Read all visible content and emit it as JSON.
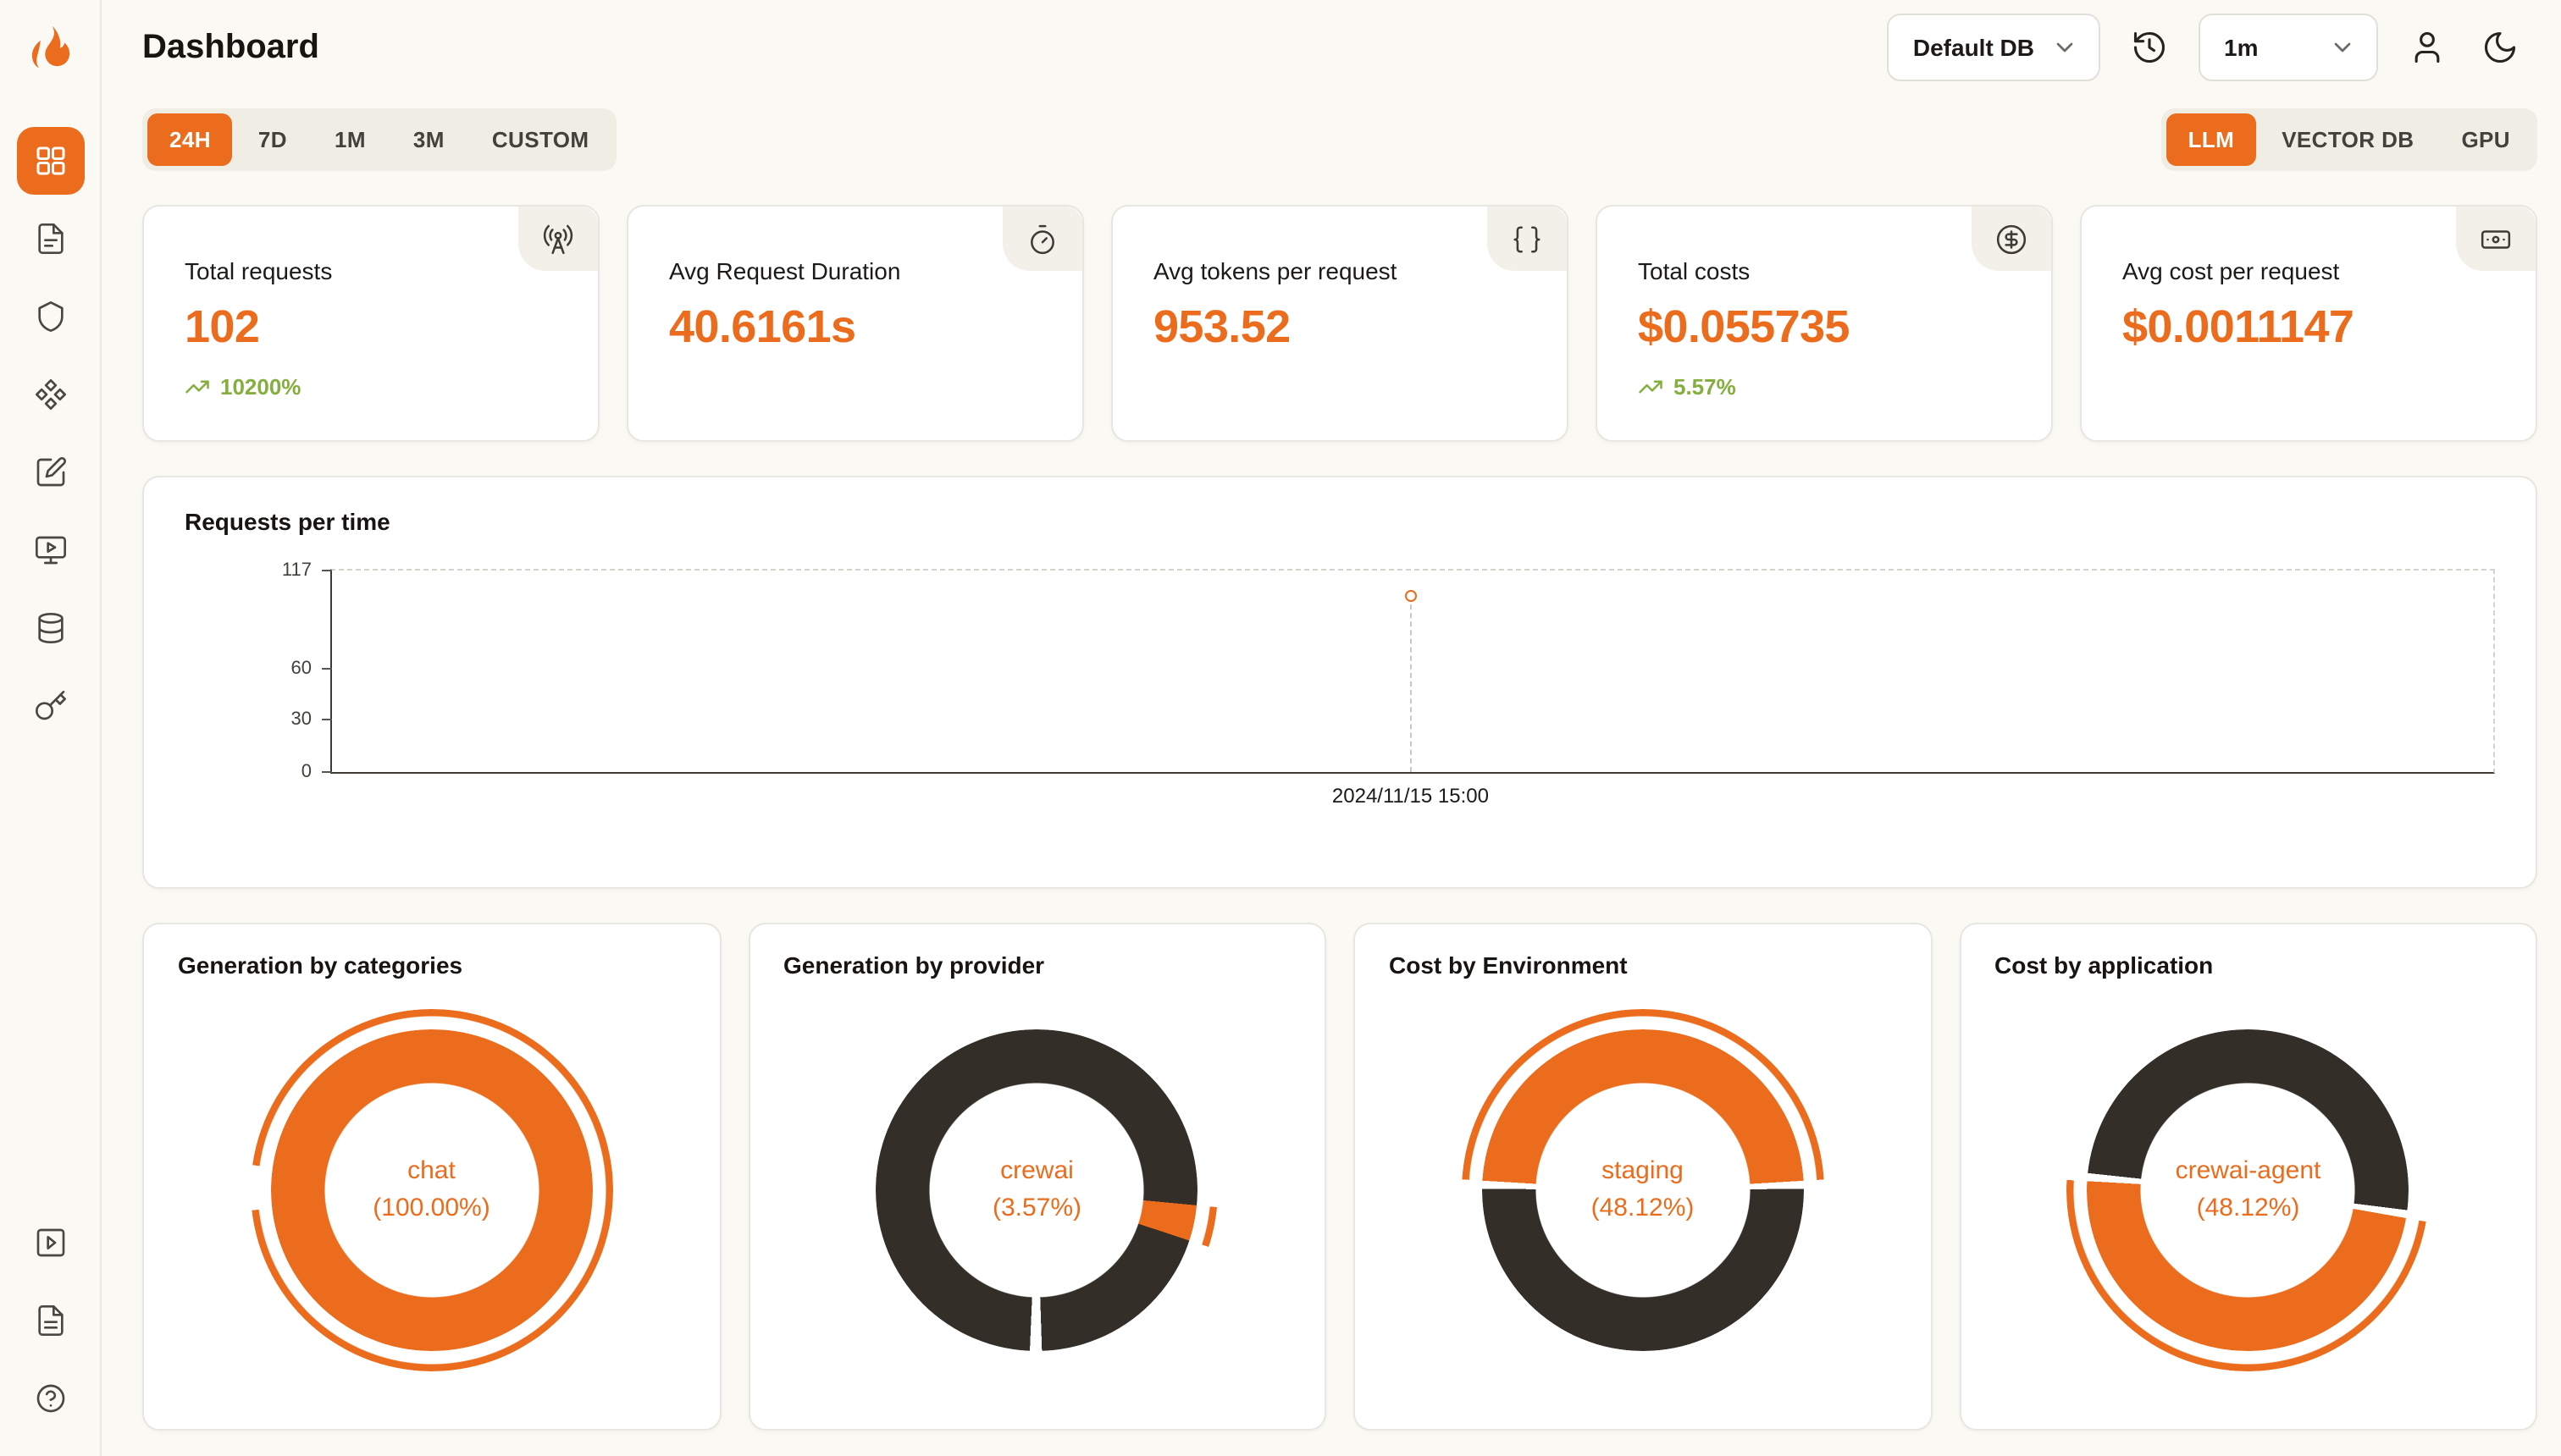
{
  "colors": {
    "accent": "#EA6C1C",
    "dark": "#332E28",
    "green": "#84AE3D",
    "page_bg": "#FAF9F4"
  },
  "header": {
    "title": "Dashboard",
    "db_select": {
      "value": "Default DB"
    },
    "refresh_interval_select": {
      "value": "1m"
    },
    "icons": [
      "history-icon",
      "user-icon",
      "moon-icon"
    ]
  },
  "sidebar": {
    "logo_icon": "flame-logo",
    "items": [
      {
        "icon": "dashboard-grid-icon",
        "active": true
      },
      {
        "icon": "requests-file-icon",
        "active": false
      },
      {
        "icon": "exceptions-shield-icon",
        "active": false
      },
      {
        "icon": "modules-diamonds-icon",
        "active": false
      },
      {
        "icon": "evaluations-edit-icon",
        "active": false
      },
      {
        "icon": "playground-monitor-icon",
        "active": false
      },
      {
        "icon": "databases-icon",
        "active": false
      },
      {
        "icon": "api-keys-key-icon",
        "active": false
      }
    ],
    "bottom_items": [
      {
        "icon": "getting-started-play-icon"
      },
      {
        "icon": "documentation-file-icon"
      },
      {
        "icon": "help-circle-icon"
      }
    ]
  },
  "filters": {
    "time_ranges": [
      "24H",
      "7D",
      "1M",
      "3M",
      "CUSTOM"
    ],
    "active_time_range": "24H",
    "modes": [
      "LLM",
      "VECTOR DB",
      "GPU"
    ],
    "active_mode": "LLM"
  },
  "stats": [
    {
      "label": "Total requests",
      "value": "102",
      "delta": "10200%",
      "icon": "radio-tower-icon"
    },
    {
      "label": "Avg Request Duration",
      "value": "40.6161s",
      "icon": "timer-icon"
    },
    {
      "label": "Avg tokens per request",
      "value": "953.52",
      "icon": "braces-icon"
    },
    {
      "label": "Total costs",
      "value": "$0.055735",
      "delta": "5.57%",
      "icon": "circle-dollar-icon"
    },
    {
      "label": "Avg cost per request",
      "value": "$0.0011147",
      "icon": "banknote-icon"
    }
  ],
  "chart_data": [
    {
      "type": "line",
      "title": "Requests per time",
      "x": [
        "2024/11/15 15:00"
      ],
      "values": [
        102
      ],
      "ylim": [
        0,
        117
      ],
      "yticks": [
        0,
        30,
        60,
        117
      ],
      "x_frac": 0.499,
      "grid": "dashed top/right frame, dashed vertical guide at data point",
      "legend": "none"
    },
    {
      "type": "pie",
      "title": "Generation by categories",
      "labels": [
        "chat"
      ],
      "values": [
        100.0
      ],
      "center_top": "chat",
      "center_bottom": "(100.00%)",
      "rotate": -90,
      "segments": [
        {
          "color": "#EA6C1C",
          "pct": 100
        }
      ],
      "arc": {
        "pct": 96,
        "rotate": -82,
        "color": "#EA6C1C"
      }
    },
    {
      "type": "pie",
      "title": "Generation by provider",
      "labels": [
        "crewai",
        "other"
      ],
      "values": [
        3.57,
        96.43
      ],
      "center_top": "crewai",
      "center_bottom": "(3.57%)",
      "rotate": 0,
      "segments": [
        {
          "color": "#332E28",
          "pct": 26.5
        },
        {
          "color": "#EA6C1C",
          "pct": 3.57
        },
        {
          "color": "#332E28",
          "pct": 19.4
        },
        {
          "color": "#FFFFFF",
          "pct": 1.2
        },
        {
          "color": "#332E28",
          "pct": 49.33
        }
      ],
      "arc": {
        "pct": 3.57,
        "rotate": 95.4,
        "color": "#EA6C1C"
      }
    },
    {
      "type": "pie",
      "title": "Cost by Environment",
      "labels": [
        "staging",
        "other"
      ],
      "values": [
        48.12,
        51.88
      ],
      "center_top": "staging",
      "center_bottom": "(48.12%)",
      "rotate": -86.6,
      "segments": [
        {
          "color": "#EA6C1C",
          "pct": 48.12
        },
        {
          "color": "#FFFFFF",
          "pct": 0.8
        },
        {
          "color": "#332E28",
          "pct": 50.28
        },
        {
          "color": "#FFFFFF",
          "pct": 0.8
        }
      ],
      "arc": {
        "pct": 48.12,
        "rotate": -86.6,
        "color": "#EA6C1C"
      }
    },
    {
      "type": "pie",
      "title": "Cost by application",
      "labels": [
        "crewai-agent",
        "other"
      ],
      "values": [
        48.12,
        51.88
      ],
      "center_top": "crewai-agent",
      "center_bottom": "(48.12%)",
      "rotate": 100,
      "segments": [
        {
          "color": "#EA6C1C",
          "pct": 48.12
        },
        {
          "color": "#FFFFFF",
          "pct": 0.8
        },
        {
          "color": "#332E28",
          "pct": 50.28
        },
        {
          "color": "#FFFFFF",
          "pct": 0.8
        }
      ],
      "arc": {
        "pct": 48.12,
        "rotate": 100,
        "color": "#EA6C1C"
      }
    }
  ]
}
